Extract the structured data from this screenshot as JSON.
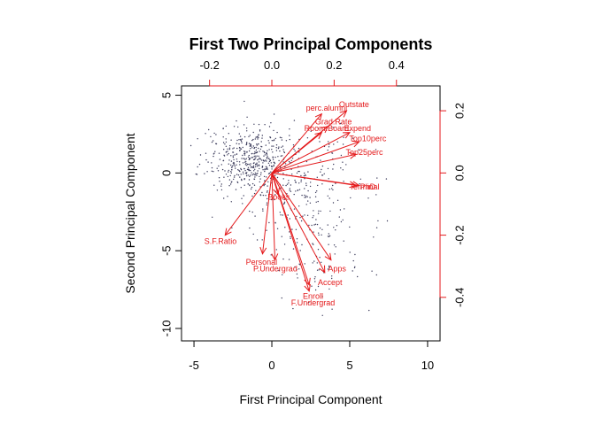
{
  "chart_data": {
    "type": "scatter",
    "subtype": "biplot",
    "title": "First Two Principal Components",
    "xlabel": "First Principal Component",
    "ylabel": "Second Principal Component",
    "xlim": [
      -5.8,
      10.8
    ],
    "ylim": [
      -10.8,
      5.6
    ],
    "x_ticks": [
      -5,
      0,
      5,
      10
    ],
    "y_ticks": [
      -10,
      -5,
      0,
      5
    ],
    "top_axis": {
      "range": [
        -0.29,
        0.54
      ],
      "ticks": [
        -0.2,
        0.0,
        0.2,
        0.4
      ],
      "tick_labels": [
        "-0.2",
        "0.0",
        "0.2",
        "0.4"
      ]
    },
    "right_axis": {
      "range": [
        -0.54,
        0.28
      ],
      "ticks": [
        -0.4,
        -0.2,
        0.0,
        0.2
      ],
      "tick_labels": [
        "-0.4",
        "-0.2",
        "0.0",
        "0.2"
      ]
    },
    "colors": {
      "points": "#3a3a5a",
      "arrows": "#e41a1c",
      "axes": "#000000"
    },
    "loadings": [
      {
        "name": "Outstate",
        "x": 0.24,
        "y": 0.2
      },
      {
        "name": "perc.alumni",
        "x": 0.16,
        "y": 0.19
      },
      {
        "name": "Grad.Rate",
        "x": 0.18,
        "y": 0.15
      },
      {
        "name": "Room.Board",
        "x": 0.16,
        "y": 0.13
      },
      {
        "name": "Expend",
        "x": 0.25,
        "y": 0.13
      },
      {
        "name": "Top10perc",
        "x": 0.28,
        "y": 0.1
      },
      {
        "name": "Top25perc",
        "x": 0.27,
        "y": 0.06
      },
      {
        "name": "Terminal",
        "x": 0.27,
        "y": -0.04
      },
      {
        "name": "PhD",
        "x": 0.28,
        "y": -0.04
      },
      {
        "name": "Books",
        "x": 0.02,
        "y": -0.07
      },
      {
        "name": "Personal",
        "x": -0.03,
        "y": -0.26
      },
      {
        "name": "S.F.Ratio",
        "x": -0.15,
        "y": -0.2
      },
      {
        "name": "P.Undergrad",
        "x": 0.01,
        "y": -0.28
      },
      {
        "name": "Apps",
        "x": 0.19,
        "y": -0.28
      },
      {
        "name": "Accept",
        "x": 0.17,
        "y": -0.32
      },
      {
        "name": "Enroll",
        "x": 0.12,
        "y": -0.36
      },
      {
        "name": "F.Undergrad",
        "x": 0.12,
        "y": -0.38
      }
    ],
    "scores_note_count": 777
  }
}
